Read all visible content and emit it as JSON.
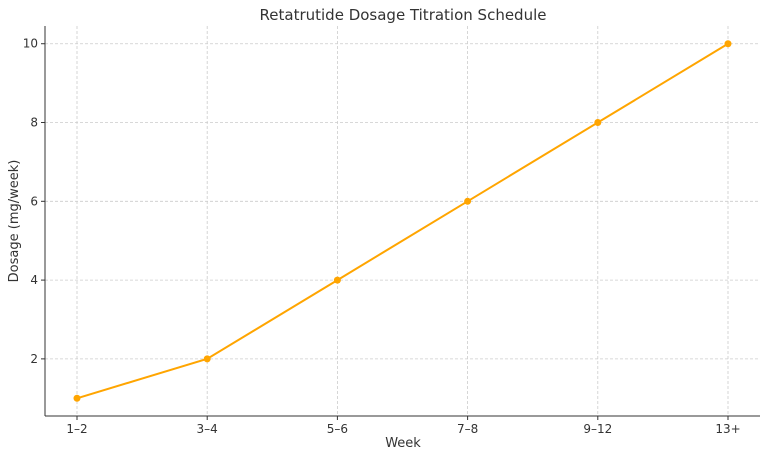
{
  "chart_data": {
    "type": "line",
    "title": "Retatrutide Dosage Titration Schedule",
    "xlabel": "Week",
    "ylabel": "Dosage (mg/week)",
    "categories": [
      "1–2",
      "3–4",
      "5–6",
      "7–8",
      "9–12",
      "13+"
    ],
    "series": [
      {
        "values": [
          1,
          2,
          4,
          6,
          8,
          10
        ],
        "color": "#FFA500"
      }
    ],
    "ylim": [
      0.55,
      10.45
    ],
    "yticks": [
      2,
      4,
      6,
      8,
      10
    ],
    "grid": true,
    "markers": true
  }
}
